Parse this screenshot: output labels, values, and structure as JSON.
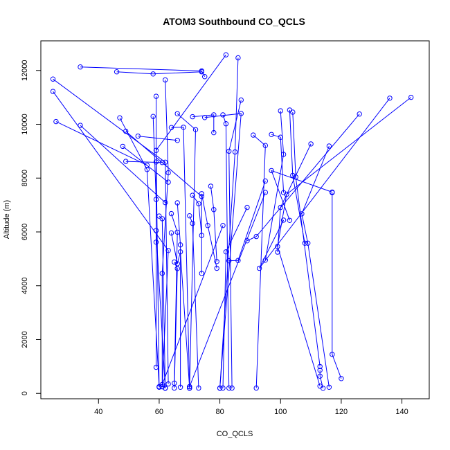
{
  "chart_data": {
    "type": "line",
    "title": "ATOM3 Southbound CO_QCLS",
    "xlabel": "CO_QCLS",
    "ylabel": "Altitude (m)",
    "xlim": [
      21,
      149
    ],
    "ylim": [
      -200,
      13100
    ],
    "xticks": [
      40,
      60,
      80,
      100,
      120,
      140
    ],
    "yticks": [
      0,
      2000,
      4000,
      6000,
      8000,
      10000,
      12000
    ],
    "grid": false,
    "legend": "none",
    "color": "#0000ff",
    "marker": "open-circle",
    "series": [
      {
        "x": [
          34,
          74,
          75
        ],
        "y": [
          12130,
          11980,
          11770
        ]
      },
      {
        "x": [
          46,
          58,
          74
        ],
        "y": [
          11950,
          11870,
          11950
        ]
      },
      {
        "x": [
          25,
          62,
          63
        ],
        "y": [
          11680,
          8590,
          350
        ]
      },
      {
        "x": [
          25,
          63,
          61
        ],
        "y": [
          11220,
          5310,
          250
        ]
      },
      {
        "x": [
          26,
          56
        ],
        "y": [
          10100,
          8480
        ]
      },
      {
        "x": [
          34,
          62
        ],
        "y": [
          9960,
          7090
        ]
      },
      {
        "x": [
          82,
          59,
          60
        ],
        "y": [
          12580,
          9030,
          230
        ]
      },
      {
        "x": [
          86,
          85,
          80
        ],
        "y": [
          12470,
          8970,
          190
        ]
      },
      {
        "x": [
          59,
          59,
          59,
          59
        ],
        "y": [
          11040,
          8600,
          5620,
          970
        ]
      },
      {
        "x": [
          62,
          63,
          61,
          61
        ],
        "y": [
          11650,
          8200,
          4460,
          250
        ]
      },
      {
        "x": [
          58,
          59,
          59,
          62
        ],
        "y": [
          10290,
          7210,
          6050,
          190
        ]
      },
      {
        "x": [
          47,
          56,
          60
        ],
        "y": [
          10240,
          8320,
          250
        ]
      },
      {
        "x": [
          49,
          74,
          74
        ],
        "y": [
          9740,
          7320,
          4460
        ]
      },
      {
        "x": [
          53,
          66
        ],
        "y": [
          9560,
          9400
        ]
      },
      {
        "x": [
          48,
          63
        ],
        "y": [
          9180,
          7850
        ]
      },
      {
        "x": [
          49,
          61
        ],
        "y": [
          8620,
          8580
        ]
      },
      {
        "x": [
          64,
          68,
          70
        ],
        "y": [
          9880,
          9890,
          250
        ]
      },
      {
        "x": [
          66,
          72,
          70
        ],
        "y": [
          10390,
          9800,
          190
        ]
      },
      {
        "x": [
          71,
          78,
          78
        ],
        "y": [
          10280,
          10350,
          9690
        ]
      },
      {
        "x": [
          75,
          87,
          80
        ],
        "y": [
          10250,
          10400,
          200
        ]
      },
      {
        "x": [
          81,
          82,
          83
        ],
        "y": [
          10350,
          10020,
          200
        ]
      },
      {
        "x": [
          87,
          83,
          84
        ],
        "y": [
          10900,
          9000,
          200
        ]
      },
      {
        "x": [
          91,
          95,
          92
        ],
        "y": [
          9600,
          9210,
          200
        ]
      },
      {
        "x": [
          100,
          101,
          95
        ],
        "y": [
          10500,
          8880,
          4950
        ]
      },
      {
        "x": [
          103,
          104,
          108
        ],
        "y": [
          10530,
          8100,
          5580
        ]
      },
      {
        "x": [
          104,
          105,
          113
        ],
        "y": [
          10450,
          8040,
          1000
        ]
      },
      {
        "x": [
          97,
          100,
          101
        ],
        "y": [
          9620,
          9520,
          7460
        ]
      },
      {
        "x": [
          110,
          100,
          99
        ],
        "y": [
          9270,
          6910,
          5250
        ]
      },
      {
        "x": [
          126,
          92,
          89
        ],
        "y": [
          10380,
          5830,
          5670
        ]
      },
      {
        "x": [
          136,
          93,
          101
        ],
        "y": [
          10970,
          4650,
          6440
        ]
      },
      {
        "x": [
          143,
          102,
          99,
          113
        ],
        "y": [
          11000,
          7400,
          5460,
          270
        ]
      },
      {
        "x": [
          116,
          107,
          109,
          116
        ],
        "y": [
          9190,
          6670,
          5580,
          230
        ]
      },
      {
        "x": [
          117,
          97,
          103
        ],
        "y": [
          7480,
          8280,
          6430
        ]
      },
      {
        "x": [
          117,
          117,
          120
        ],
        "y": [
          7460,
          1450,
          550
        ]
      },
      {
        "x": [
          95,
          86,
          83
        ],
        "y": [
          7890,
          4940,
          4930
        ]
      },
      {
        "x": [
          89,
          82,
          81
        ],
        "y": [
          6910,
          5260,
          200
        ]
      },
      {
        "x": [
          64,
          66,
          67,
          70
        ],
        "y": [
          5960,
          4820,
          5260,
          200
        ]
      },
      {
        "x": [
          70,
          71,
          73
        ],
        "y": [
          6600,
          6320,
          200
        ]
      },
      {
        "x": [
          71,
          73,
          74
        ],
        "y": [
          7360,
          7050,
          5870
        ]
      },
      {
        "x": [
          74,
          76,
          79
        ],
        "y": [
          7420,
          6240,
          4650
        ]
      },
      {
        "x": [
          77,
          78,
          79
        ],
        "y": [
          7700,
          6830,
          4900
        ]
      },
      {
        "x": [
          60,
          61,
          62
        ],
        "y": [
          6590,
          6490,
          200
        ]
      },
      {
        "x": [
          64,
          66,
          65
        ],
        "y": [
          6680,
          5990,
          380
        ]
      },
      {
        "x": [
          66,
          67,
          67
        ],
        "y": [
          7080,
          5520,
          230
        ]
      },
      {
        "x": [
          65,
          66,
          65
        ],
        "y": [
          4880,
          4640,
          200
        ]
      },
      {
        "x": [
          113,
          113,
          114
        ],
        "y": [
          860,
          640,
          190
        ]
      },
      {
        "x": [
          81,
          61
        ],
        "y": [
          6240,
          330
        ]
      },
      {
        "x": [
          95,
          70
        ],
        "y": [
          7470,
          250
        ]
      }
    ]
  }
}
